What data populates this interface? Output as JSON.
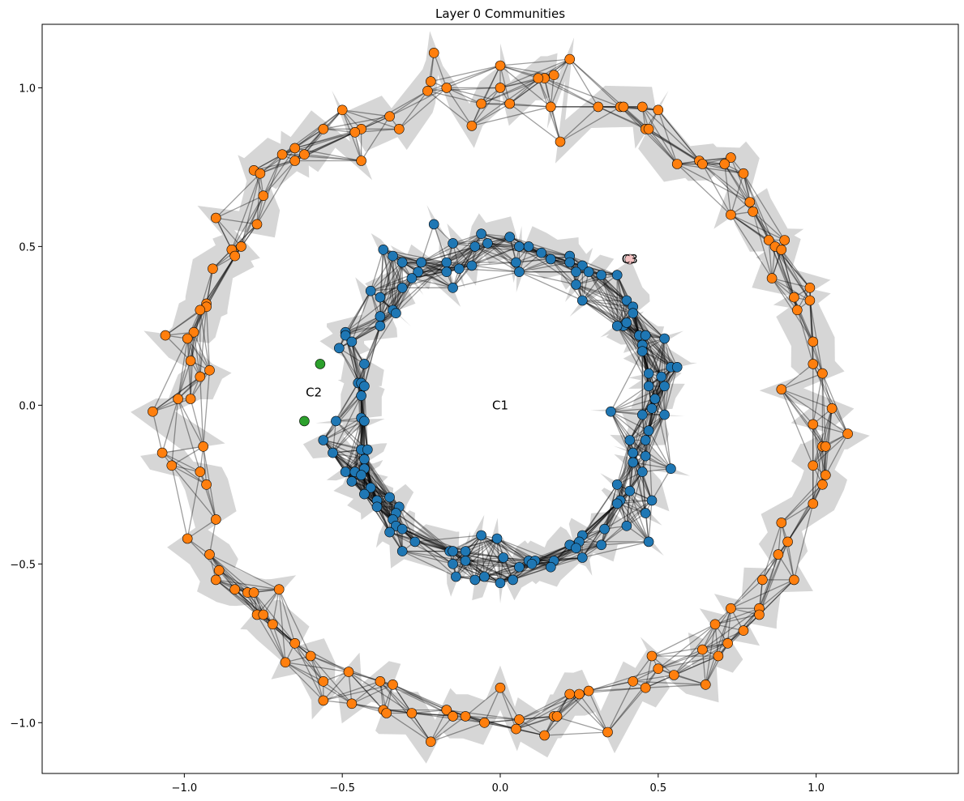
{
  "chart_data": {
    "type": "scatter",
    "title": "Layer 0 Communities",
    "xlabel": "",
    "ylabel": "",
    "xlim": [
      -1.45,
      1.45
    ],
    "ylim": [
      -1.16,
      1.2
    ],
    "xticks": [
      -1.0,
      -0.5,
      0.0,
      0.5,
      1.0
    ],
    "xtick_labels": [
      "−1.0",
      "−0.5",
      "0.0",
      "0.5",
      "1.0"
    ],
    "yticks": [
      -1.0,
      -0.5,
      0.0,
      0.5,
      1.0
    ],
    "ytick_labels": [
      "−1.0",
      "−0.5",
      "0.0",
      "0.5",
      "1.0"
    ],
    "grid": false,
    "legend": "none",
    "community_labels": [
      {
        "text": "C1",
        "x": 0.0,
        "y": 0.0
      },
      {
        "text": "C2",
        "x": -0.59,
        "y": 0.04
      },
      {
        "text": "C3",
        "x": 0.41,
        "y": 0.46
      }
    ],
    "series": [
      {
        "color": "#1f77b4",
        "points": [
          [
            -0.21,
            0.57
          ],
          [
            -0.06,
            0.54
          ],
          [
            0.03,
            0.53
          ],
          [
            -0.15,
            0.51
          ],
          [
            -0.04,
            0.51
          ],
          [
            0.06,
            0.5
          ],
          [
            0.09,
            0.5
          ],
          [
            -0.37,
            0.49
          ],
          [
            -0.08,
            0.5
          ],
          [
            0.13,
            0.48
          ],
          [
            0.22,
            0.47
          ],
          [
            -0.34,
            0.47
          ],
          [
            -0.25,
            0.45
          ],
          [
            -0.17,
            0.45
          ],
          [
            -0.09,
            0.44
          ],
          [
            0.05,
            0.45
          ],
          [
            0.16,
            0.46
          ],
          [
            0.22,
            0.45
          ],
          [
            0.26,
            0.44
          ],
          [
            -0.31,
            0.45
          ],
          [
            -0.13,
            0.43
          ],
          [
            -0.17,
            0.42
          ],
          [
            -0.26,
            0.42
          ],
          [
            0.06,
            0.42
          ],
          [
            0.24,
            0.42
          ],
          [
            0.28,
            0.42
          ],
          [
            0.32,
            0.41
          ],
          [
            -0.28,
            0.4
          ],
          [
            0.37,
            0.41
          ],
          [
            -0.31,
            0.37
          ],
          [
            -0.15,
            0.37
          ],
          [
            0.24,
            0.38
          ],
          [
            -0.41,
            0.36
          ],
          [
            -0.38,
            0.34
          ],
          [
            0.4,
            0.33
          ],
          [
            0.26,
            0.33
          ],
          [
            -0.34,
            0.3
          ],
          [
            -0.33,
            0.29
          ],
          [
            0.42,
            0.31
          ],
          [
            -0.38,
            0.28
          ],
          [
            0.42,
            0.29
          ],
          [
            -0.38,
            0.25
          ],
          [
            0.39,
            0.25
          ],
          [
            0.4,
            0.26
          ],
          [
            0.37,
            0.25
          ],
          [
            -0.49,
            0.23
          ],
          [
            -0.49,
            0.22
          ],
          [
            -0.47,
            0.2
          ],
          [
            0.44,
            0.22
          ],
          [
            0.46,
            0.22
          ],
          [
            0.52,
            0.21
          ],
          [
            -0.51,
            0.18
          ],
          [
            0.45,
            0.19
          ],
          [
            0.45,
            0.17
          ],
          [
            -0.43,
            0.13
          ],
          [
            0.54,
            0.12
          ],
          [
            0.56,
            0.12
          ],
          [
            0.47,
            0.1
          ],
          [
            0.51,
            0.09
          ],
          [
            -0.45,
            0.07
          ],
          [
            -0.44,
            0.07
          ],
          [
            -0.43,
            0.06
          ],
          [
            0.52,
            0.06
          ],
          [
            0.47,
            0.06
          ],
          [
            -0.44,
            0.03
          ],
          [
            0.49,
            0.02
          ],
          [
            0.48,
            -0.01
          ],
          [
            -0.44,
            -0.04
          ],
          [
            0.35,
            -0.02
          ],
          [
            0.45,
            -0.03
          ],
          [
            0.52,
            -0.03
          ],
          [
            -0.43,
            -0.05
          ],
          [
            -0.52,
            -0.05
          ],
          [
            0.47,
            -0.08
          ],
          [
            0.41,
            -0.11
          ],
          [
            0.46,
            -0.11
          ],
          [
            -0.56,
            -0.11
          ],
          [
            -0.44,
            -0.14
          ],
          [
            -0.42,
            -0.14
          ],
          [
            -0.53,
            -0.15
          ],
          [
            0.42,
            -0.15
          ],
          [
            0.46,
            -0.16
          ],
          [
            -0.43,
            -0.17
          ],
          [
            0.42,
            -0.18
          ],
          [
            0.54,
            -0.2
          ],
          [
            -0.49,
            -0.21
          ],
          [
            -0.43,
            -0.2
          ],
          [
            -0.46,
            -0.21
          ],
          [
            0.45,
            -0.21
          ],
          [
            -0.44,
            -0.22
          ],
          [
            -0.47,
            -0.24
          ],
          [
            0.37,
            -0.25
          ],
          [
            0.41,
            -0.27
          ],
          [
            -0.41,
            -0.26
          ],
          [
            -0.43,
            -0.28
          ],
          [
            0.48,
            -0.3
          ],
          [
            -0.35,
            -0.29
          ],
          [
            0.38,
            -0.3
          ],
          [
            0.37,
            -0.31
          ],
          [
            -0.39,
            -0.3
          ],
          [
            -0.39,
            -0.32
          ],
          [
            -0.32,
            -0.32
          ],
          [
            0.46,
            -0.34
          ],
          [
            -0.33,
            -0.34
          ],
          [
            -0.34,
            -0.36
          ],
          [
            0.4,
            -0.38
          ],
          [
            -0.33,
            -0.38
          ],
          [
            -0.31,
            -0.39
          ],
          [
            0.33,
            -0.39
          ],
          [
            -0.35,
            -0.4
          ],
          [
            -0.06,
            -0.41
          ],
          [
            0.26,
            -0.41
          ],
          [
            -0.01,
            -0.42
          ],
          [
            0.25,
            -0.43
          ],
          [
            -0.27,
            -0.43
          ],
          [
            0.32,
            -0.44
          ],
          [
            0.47,
            -0.43
          ],
          [
            0.22,
            -0.44
          ],
          [
            0.24,
            -0.45
          ],
          [
            -0.16,
            -0.46
          ],
          [
            -0.11,
            -0.46
          ],
          [
            -0.15,
            -0.46
          ],
          [
            -0.31,
            -0.46
          ],
          [
            0.01,
            -0.48
          ],
          [
            0.09,
            -0.49
          ],
          [
            0.26,
            -0.48
          ],
          [
            0.11,
            -0.49
          ],
          [
            0.17,
            -0.49
          ],
          [
            -0.11,
            -0.49
          ],
          [
            0.1,
            -0.5
          ],
          [
            -0.15,
            -0.5
          ],
          [
            0.16,
            -0.51
          ],
          [
            0.06,
            -0.51
          ],
          [
            -0.14,
            -0.54
          ],
          [
            -0.05,
            -0.54
          ],
          [
            0.04,
            -0.55
          ],
          [
            -0.08,
            -0.55
          ],
          [
            0.0,
            -0.56
          ]
        ]
      },
      {
        "color": "#ff7f0e",
        "points": [
          [
            -0.21,
            1.11
          ],
          [
            0.0,
            1.07
          ],
          [
            0.22,
            1.09
          ],
          [
            0.17,
            1.04
          ],
          [
            0.14,
            1.03
          ],
          [
            0.12,
            1.03
          ],
          [
            -0.22,
            1.02
          ],
          [
            -0.23,
            0.99
          ],
          [
            -0.17,
            1.0
          ],
          [
            0.0,
            1.0
          ],
          [
            0.16,
            0.94
          ],
          [
            0.03,
            0.95
          ],
          [
            -0.06,
            0.95
          ],
          [
            0.31,
            0.94
          ],
          [
            0.38,
            0.94
          ],
          [
            0.39,
            0.94
          ],
          [
            0.45,
            0.94
          ],
          [
            0.5,
            0.93
          ],
          [
            -0.09,
            0.88
          ],
          [
            -0.5,
            0.93
          ],
          [
            -0.35,
            0.91
          ],
          [
            -0.32,
            0.87
          ],
          [
            -0.44,
            0.87
          ],
          [
            -0.46,
            0.86
          ],
          [
            -0.56,
            0.87
          ],
          [
            0.46,
            0.87
          ],
          [
            0.47,
            0.87
          ],
          [
            0.19,
            0.83
          ],
          [
            -0.44,
            0.77
          ],
          [
            -0.69,
            0.79
          ],
          [
            -0.62,
            0.79
          ],
          [
            -0.65,
            0.81
          ],
          [
            -0.65,
            0.77
          ],
          [
            0.63,
            0.77
          ],
          [
            0.64,
            0.76
          ],
          [
            0.56,
            0.76
          ],
          [
            0.73,
            0.78
          ],
          [
            0.71,
            0.76
          ],
          [
            0.77,
            0.73
          ],
          [
            -0.78,
            0.74
          ],
          [
            -0.76,
            0.73
          ],
          [
            -0.75,
            0.66
          ],
          [
            0.79,
            0.64
          ],
          [
            0.8,
            0.61
          ],
          [
            0.73,
            0.6
          ],
          [
            -0.9,
            0.59
          ],
          [
            -0.77,
            0.57
          ],
          [
            -0.82,
            0.5
          ],
          [
            -0.85,
            0.49
          ],
          [
            -0.84,
            0.47
          ],
          [
            0.85,
            0.52
          ],
          [
            0.9,
            0.52
          ],
          [
            0.87,
            0.5
          ],
          [
            0.89,
            0.49
          ],
          [
            -0.91,
            0.43
          ],
          [
            0.86,
            0.4
          ],
          [
            0.98,
            0.37
          ],
          [
            -0.93,
            0.32
          ],
          [
            -0.93,
            0.31
          ],
          [
            -0.95,
            0.3
          ],
          [
            0.94,
            0.3
          ],
          [
            0.93,
            0.34
          ],
          [
            0.98,
            0.33
          ],
          [
            -1.06,
            0.22
          ],
          [
            -0.97,
            0.23
          ],
          [
            -0.99,
            0.21
          ],
          [
            0.99,
            0.2
          ],
          [
            -0.95,
            0.09
          ],
          [
            -0.92,
            0.11
          ],
          [
            -0.98,
            0.14
          ],
          [
            0.99,
            0.13
          ],
          [
            1.02,
            0.1
          ],
          [
            -0.98,
            0.02
          ],
          [
            -1.02,
            0.02
          ],
          [
            0.89,
            0.05
          ],
          [
            -1.1,
            -0.02
          ],
          [
            1.05,
            -0.01
          ],
          [
            0.99,
            -0.06
          ],
          [
            1.1,
            -0.09
          ],
          [
            -0.94,
            -0.13
          ],
          [
            1.02,
            -0.13
          ],
          [
            1.03,
            -0.13
          ],
          [
            -1.07,
            -0.15
          ],
          [
            -1.04,
            -0.19
          ],
          [
            0.99,
            -0.19
          ],
          [
            -0.95,
            -0.21
          ],
          [
            1.03,
            -0.22
          ],
          [
            -0.93,
            -0.25
          ],
          [
            1.02,
            -0.25
          ],
          [
            0.99,
            -0.31
          ],
          [
            -0.9,
            -0.36
          ],
          [
            0.89,
            -0.37
          ],
          [
            0.91,
            -0.43
          ],
          [
            -0.99,
            -0.42
          ],
          [
            -0.92,
            -0.47
          ],
          [
            0.88,
            -0.47
          ],
          [
            -0.89,
            -0.52
          ],
          [
            -0.9,
            -0.55
          ],
          [
            0.93,
            -0.55
          ],
          [
            0.83,
            -0.55
          ],
          [
            -0.84,
            -0.58
          ],
          [
            -0.7,
            -0.58
          ],
          [
            -0.8,
            -0.59
          ],
          [
            -0.78,
            -0.59
          ],
          [
            0.82,
            -0.64
          ],
          [
            0.82,
            -0.66
          ],
          [
            0.73,
            -0.64
          ],
          [
            -0.77,
            -0.66
          ],
          [
            -0.75,
            -0.66
          ],
          [
            -0.72,
            -0.69
          ],
          [
            0.68,
            -0.69
          ],
          [
            0.77,
            -0.71
          ],
          [
            0.72,
            -0.75
          ],
          [
            -0.65,
            -0.75
          ],
          [
            0.64,
            -0.77
          ],
          [
            0.69,
            -0.79
          ],
          [
            -0.6,
            -0.79
          ],
          [
            0.48,
            -0.79
          ],
          [
            0.5,
            -0.83
          ],
          [
            -0.68,
            -0.81
          ],
          [
            0.55,
            -0.85
          ],
          [
            0.65,
            -0.88
          ],
          [
            -0.48,
            -0.84
          ],
          [
            -0.56,
            -0.87
          ],
          [
            -0.38,
            -0.87
          ],
          [
            -0.34,
            -0.88
          ],
          [
            0.0,
            -0.89
          ],
          [
            0.28,
            -0.9
          ],
          [
            0.22,
            -0.91
          ],
          [
            0.25,
            -0.91
          ],
          [
            0.46,
            -0.89
          ],
          [
            0.42,
            -0.87
          ],
          [
            -0.56,
            -0.93
          ],
          [
            -0.47,
            -0.94
          ],
          [
            -0.37,
            -0.96
          ],
          [
            -0.36,
            -0.97
          ],
          [
            -0.28,
            -0.97
          ],
          [
            -0.17,
            -0.96
          ],
          [
            -0.15,
            -0.98
          ],
          [
            -0.11,
            -0.98
          ],
          [
            0.17,
            -0.98
          ],
          [
            0.18,
            -0.98
          ],
          [
            -0.05,
            -1.0
          ],
          [
            0.06,
            -0.99
          ],
          [
            0.05,
            -1.02
          ],
          [
            0.34,
            -1.03
          ],
          [
            0.14,
            -1.04
          ],
          [
            -0.22,
            -1.06
          ]
        ]
      },
      {
        "color": "#2ca02c",
        "points": [
          [
            -0.57,
            0.13
          ],
          [
            -0.62,
            -0.05
          ]
        ]
      },
      {
        "color": "#f4c2c2",
        "points": [
          [
            0.41,
            0.46
          ]
        ]
      }
    ]
  }
}
